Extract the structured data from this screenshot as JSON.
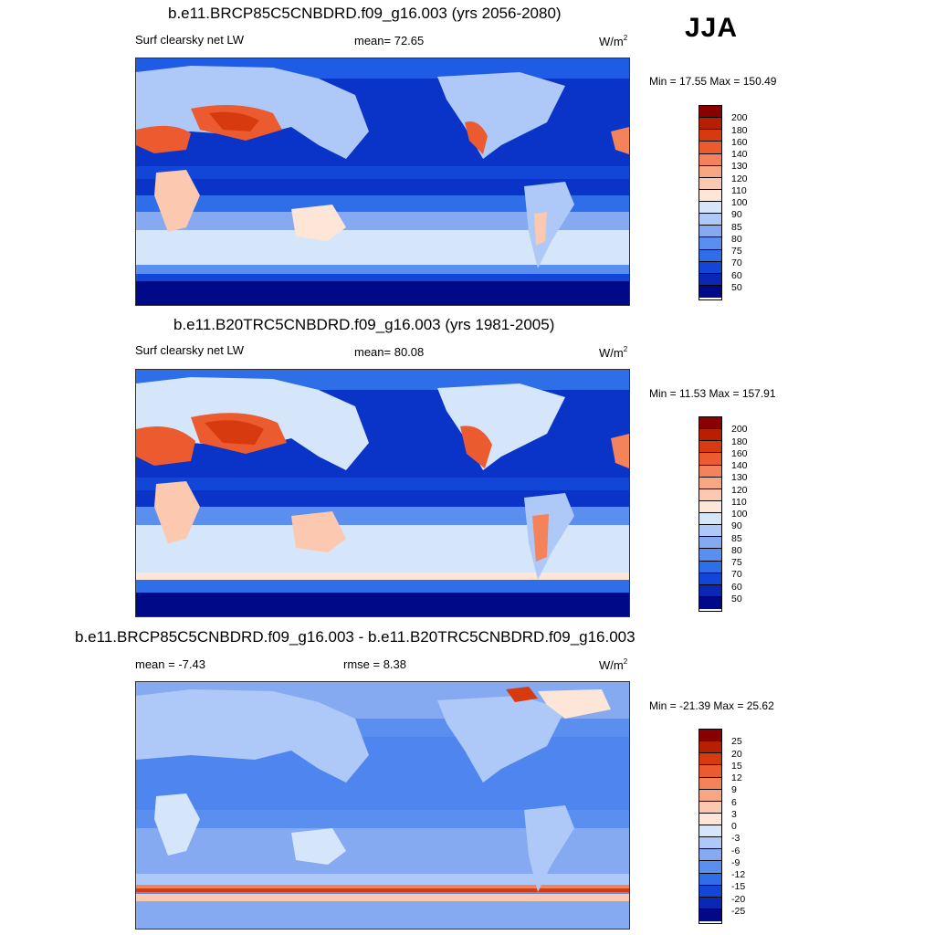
{
  "season": "JJA",
  "colors": {
    "light_blue": "#d6e6fa",
    "ocean_mid": "#1f5ce6",
    "ocean_deep": "#0a34c8",
    "polar": "#00108a",
    "hot": "#e8502a",
    "diff_bg": "#5a8ff0"
  },
  "panels": [
    {
      "id": "future",
      "title": "b.e11.BRCP85C5CNBDRD.f09_g16.003 (yrs 2056-2080)",
      "variable": "Surf clearsky net LW",
      "stat1": "mean=  72.65",
      "stat2": "",
      "units": "W/m",
      "units_sup": "2",
      "minmax": "Min =  17.55 Max = 150.49",
      "colorbar": {
        "labels": [
          "200",
          "180",
          "160",
          "140",
          "130",
          "120",
          "110",
          "100",
          "90",
          "85",
          "80",
          "75",
          "70",
          "60",
          "50"
        ],
        "colors": [
          "#8a0000",
          "#b81e00",
          "#d83a10",
          "#ec5a30",
          "#f4825a",
          "#f9a685",
          "#fcc8b0",
          "#fde5d8",
          "#d6e6fa",
          "#aec9f7",
          "#86aaf2",
          "#5a8ff0",
          "#2e6ee8",
          "#1246d8",
          "#0a28b4",
          "#000a88"
        ]
      }
    },
    {
      "id": "present",
      "title": "b.e11.B20TRC5CNBDRD.f09_g16.003 (yrs 1981-2005)",
      "variable": "Surf clearsky net LW",
      "stat1": "mean=  80.08",
      "stat2": "",
      "units": "W/m",
      "units_sup": "2",
      "minmax": "Min =  11.53 Max = 157.91",
      "colorbar": {
        "labels": [
          "200",
          "180",
          "160",
          "140",
          "130",
          "120",
          "110",
          "100",
          "90",
          "85",
          "80",
          "75",
          "70",
          "60",
          "50"
        ],
        "colors": [
          "#8a0000",
          "#b81e00",
          "#d83a10",
          "#ec5a30",
          "#f4825a",
          "#f9a685",
          "#fcc8b0",
          "#fde5d8",
          "#d6e6fa",
          "#aec9f7",
          "#86aaf2",
          "#5a8ff0",
          "#2e6ee8",
          "#1246d8",
          "#0a28b4",
          "#000a88"
        ]
      }
    },
    {
      "id": "difference",
      "title": "b.e11.BRCP85C5CNBDRD.f09_g16.003 - b.e11.B20TRC5CNBDRD.f09_g16.003",
      "variable": "",
      "stat1": "mean =  -7.43",
      "stat2": "rmse =    8.38",
      "units": "W/m",
      "units_sup": "2",
      "minmax": "Min = -21.39 Max =  25.62",
      "colorbar": {
        "labels": [
          "25",
          "20",
          "15",
          "12",
          "9",
          "6",
          "3",
          "0",
          "-3",
          "-6",
          "-9",
          "-12",
          "-15",
          "-20",
          "-25"
        ],
        "colors": [
          "#8a0000",
          "#b81e00",
          "#d83a10",
          "#ec5a30",
          "#f4825a",
          "#f9a685",
          "#fcc8b0",
          "#fde5d8",
          "#d6e6fa",
          "#aec9f7",
          "#86aaf2",
          "#5a8ff0",
          "#2e6ee8",
          "#1246d8",
          "#0a28b4",
          "#000a88"
        ]
      }
    }
  ]
}
